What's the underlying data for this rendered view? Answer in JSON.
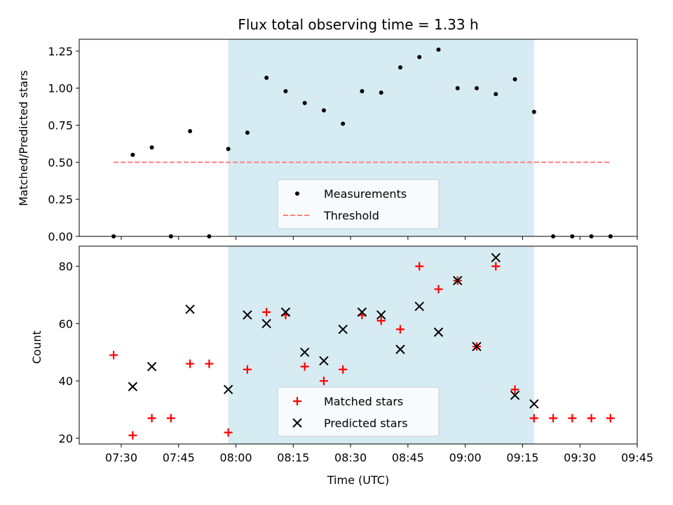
{
  "chart_data": [
    {
      "type": "scatter",
      "title": "Flux total observing time = 1.33 h",
      "ylabel": "Matched/Predicted stars",
      "ylim": [
        0,
        1.33
      ],
      "yticks": [
        "0.00",
        "0.25",
        "0.50",
        "0.75",
        "1.00",
        "1.25"
      ],
      "shaded_region": {
        "from": "07:58",
        "to": "09:18",
        "color": "#add8e6"
      },
      "series": [
        {
          "name": "Measurements",
          "marker": "dot",
          "color": "#000000",
          "points": [
            {
              "x": "07:28",
              "y": 0.0
            },
            {
              "x": "07:33",
              "y": 0.55
            },
            {
              "x": "07:38",
              "y": 0.6
            },
            {
              "x": "07:43",
              "y": 0.0
            },
            {
              "x": "07:48",
              "y": 0.71
            },
            {
              "x": "07:53",
              "y": 0.0
            },
            {
              "x": "07:58",
              "y": 0.59
            },
            {
              "x": "08:03",
              "y": 0.7
            },
            {
              "x": "08:08",
              "y": 1.07
            },
            {
              "x": "08:13",
              "y": 0.98
            },
            {
              "x": "08:18",
              "y": 0.9
            },
            {
              "x": "08:23",
              "y": 0.85
            },
            {
              "x": "08:28",
              "y": 0.76
            },
            {
              "x": "08:33",
              "y": 0.98
            },
            {
              "x": "08:38",
              "y": 0.97
            },
            {
              "x": "08:43",
              "y": 1.14
            },
            {
              "x": "08:48",
              "y": 1.21
            },
            {
              "x": "08:53",
              "y": 1.26
            },
            {
              "x": "08:58",
              "y": 1.0
            },
            {
              "x": "09:03",
              "y": 1.0
            },
            {
              "x": "09:08",
              "y": 0.96
            },
            {
              "x": "09:13",
              "y": 1.06
            },
            {
              "x": "09:18",
              "y": 0.84
            },
            {
              "x": "09:23",
              "y": 0.0
            },
            {
              "x": "09:28",
              "y": 0.0
            },
            {
              "x": "09:33",
              "y": 0.0
            },
            {
              "x": "09:38",
              "y": 0.0
            }
          ]
        },
        {
          "name": "Threshold",
          "type": "line",
          "style": "dashed",
          "color": "#ff7f7f",
          "points": [
            {
              "x": "07:28",
              "y": 0.5
            },
            {
              "x": "09:38",
              "y": 0.5
            }
          ]
        }
      ],
      "legend": {
        "placement": "lower-center"
      }
    },
    {
      "type": "scatter",
      "xlabel": "Time (UTC)",
      "ylabel": "Count",
      "ylim": [
        18,
        87
      ],
      "yticks": [
        "20",
        "40",
        "60",
        "80"
      ],
      "xlim": [
        "07:19",
        "09:45"
      ],
      "xticks": [
        "07:30",
        "07:45",
        "08:00",
        "08:15",
        "08:30",
        "08:45",
        "09:00",
        "09:15",
        "09:30",
        "09:45"
      ],
      "shaded_region": {
        "from": "07:58",
        "to": "09:18",
        "color": "#add8e6"
      },
      "series": [
        {
          "name": "Matched stars",
          "marker": "plus",
          "color": "#ff0000",
          "points": [
            {
              "x": "07:28",
              "y": 49
            },
            {
              "x": "07:33",
              "y": 21
            },
            {
              "x": "07:38",
              "y": 27
            },
            {
              "x": "07:43",
              "y": 27
            },
            {
              "x": "07:48",
              "y": 46
            },
            {
              "x": "07:53",
              "y": 46
            },
            {
              "x": "07:58",
              "y": 22
            },
            {
              "x": "08:03",
              "y": 44
            },
            {
              "x": "08:08",
              "y": 64
            },
            {
              "x": "08:13",
              "y": 63
            },
            {
              "x": "08:18",
              "y": 45
            },
            {
              "x": "08:23",
              "y": 40
            },
            {
              "x": "08:28",
              "y": 44
            },
            {
              "x": "08:33",
              "y": 63
            },
            {
              "x": "08:38",
              "y": 61
            },
            {
              "x": "08:43",
              "y": 58
            },
            {
              "x": "08:48",
              "y": 80
            },
            {
              "x": "08:53",
              "y": 72
            },
            {
              "x": "08:58",
              "y": 75
            },
            {
              "x": "09:03",
              "y": 52
            },
            {
              "x": "09:08",
              "y": 80
            },
            {
              "x": "09:13",
              "y": 37
            },
            {
              "x": "09:18",
              "y": 27
            },
            {
              "x": "09:23",
              "y": 27
            },
            {
              "x": "09:28",
              "y": 27
            },
            {
              "x": "09:33",
              "y": 27
            },
            {
              "x": "09:38",
              "y": 27
            }
          ]
        },
        {
          "name": "Predicted stars",
          "marker": "x",
          "color": "#000000",
          "points": [
            {
              "x": "07:33",
              "y": 38
            },
            {
              "x": "07:38",
              "y": 45
            },
            {
              "x": "07:48",
              "y": 65
            },
            {
              "x": "07:58",
              "y": 37
            },
            {
              "x": "08:03",
              "y": 63
            },
            {
              "x": "08:08",
              "y": 60
            },
            {
              "x": "08:13",
              "y": 64
            },
            {
              "x": "08:18",
              "y": 50
            },
            {
              "x": "08:23",
              "y": 47
            },
            {
              "x": "08:28",
              "y": 58
            },
            {
              "x": "08:33",
              "y": 64
            },
            {
              "x": "08:38",
              "y": 63
            },
            {
              "x": "08:43",
              "y": 51
            },
            {
              "x": "08:48",
              "y": 66
            },
            {
              "x": "08:53",
              "y": 57
            },
            {
              "x": "08:58",
              "y": 75
            },
            {
              "x": "09:03",
              "y": 52
            },
            {
              "x": "09:08",
              "y": 83
            },
            {
              "x": "09:13",
              "y": 35
            },
            {
              "x": "09:18",
              "y": 32
            }
          ]
        }
      ],
      "legend": {
        "placement": "lower-center"
      }
    }
  ]
}
